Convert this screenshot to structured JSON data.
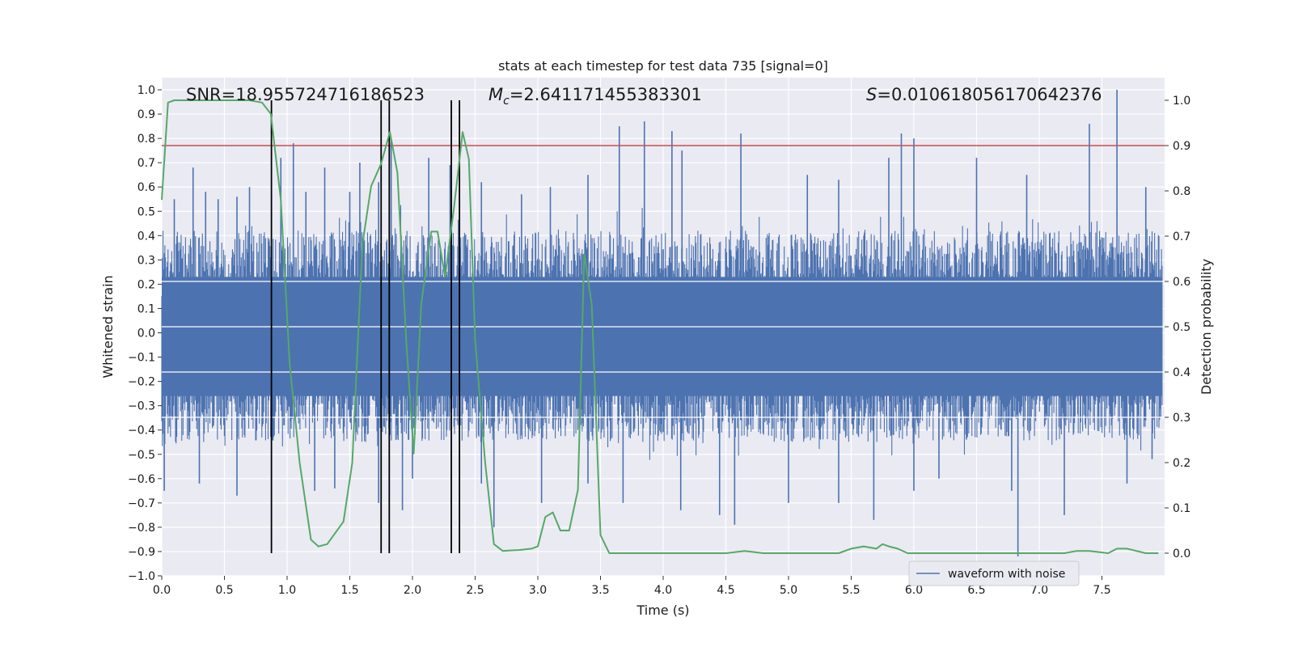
{
  "chart_data": {
    "type": "line",
    "title": "stats at each timestep for test data 735 [signal=0]",
    "xlabel": "Time (s)",
    "ylabel": "Whitened strain",
    "ylabel_right": "Detection probability",
    "xlim": [
      0.0,
      8.0
    ],
    "ylim": [
      -1.0,
      1.05
    ],
    "ylim_right": [
      -0.05,
      1.05
    ],
    "x_ticks": [
      0.0,
      0.5,
      1.0,
      1.5,
      2.0,
      2.5,
      3.0,
      3.5,
      4.0,
      4.5,
      5.0,
      5.5,
      6.0,
      6.5,
      7.0,
      7.5
    ],
    "x_tick_labels": [
      "0.0",
      "0.5",
      "1.0",
      "1.5",
      "2.0",
      "2.5",
      "3.0",
      "3.5",
      "4.0",
      "4.5",
      "5.0",
      "5.5",
      "6.0",
      "6.5",
      "7.0",
      "7.5"
    ],
    "y_ticks": [
      -1.0,
      -0.9,
      -0.8,
      -0.7,
      -0.6,
      -0.5,
      -0.4,
      -0.3,
      -0.2,
      -0.1,
      0.0,
      0.1,
      0.2,
      0.3,
      0.4,
      0.5,
      0.6,
      0.7,
      0.8,
      0.9,
      1.0
    ],
    "y_tick_labels": [
      "−1.0",
      "−0.9",
      "−0.8",
      "−0.7",
      "−0.6",
      "−0.5",
      "−0.4",
      "−0.3",
      "−0.2",
      "−0.1",
      "0.0",
      "0.1",
      "0.2",
      "0.3",
      "0.4",
      "0.5",
      "0.6",
      "0.7",
      "0.8",
      "0.9",
      "1.0"
    ],
    "y_right_ticks": [
      0.0,
      0.1,
      0.2,
      0.3,
      0.4,
      0.5,
      0.6,
      0.7,
      0.8,
      0.9,
      1.0
    ],
    "y_right_tick_labels": [
      "0.0",
      "0.1",
      "0.2",
      "0.3",
      "0.4",
      "0.5",
      "0.6",
      "0.7",
      "0.8",
      "0.9",
      "1.0"
    ],
    "grid": true,
    "legend": {
      "position": "lower-right",
      "entries": [
        {
          "label": "waveform with noise",
          "color": "#4c72b0"
        }
      ]
    },
    "annotations": {
      "snr": "SNR=18.955724716186523",
      "mc_symbol": "M",
      "mc_sub": "c",
      "mc_value": "=2.641171455383301",
      "s_symbol": "S",
      "s_value": "=0.010618056170642376"
    },
    "threshold_right": 0.9,
    "threshold_color": "#c44e52",
    "vertical_lines_x": [
      0.875,
      1.75,
      1.815,
      2.31,
      2.375
    ],
    "waveform": {
      "name": "waveform with noise",
      "color": "#4c72b0",
      "dense_band": [
        -0.45,
        0.42
      ],
      "peaks_positive": [
        [
          0.1,
          0.55
        ],
        [
          0.25,
          0.68
        ],
        [
          0.35,
          0.58
        ],
        [
          0.45,
          0.55
        ],
        [
          0.6,
          0.56
        ],
        [
          0.7,
          0.6
        ],
        [
          0.95,
          0.72
        ],
        [
          1.05,
          0.78
        ],
        [
          1.15,
          0.58
        ],
        [
          1.3,
          0.68
        ],
        [
          1.5,
          0.58
        ],
        [
          1.58,
          0.7
        ],
        [
          1.73,
          0.62
        ],
        [
          1.83,
          0.8
        ],
        [
          2.13,
          0.72
        ],
        [
          2.3,
          0.69
        ],
        [
          2.55,
          0.62
        ],
        [
          2.87,
          0.57
        ],
        [
          3.1,
          0.6
        ],
        [
          3.4,
          0.65
        ],
        [
          3.65,
          0.85
        ],
        [
          3.85,
          0.87
        ],
        [
          4.07,
          0.83
        ],
        [
          4.15,
          0.75
        ],
        [
          4.62,
          0.82
        ],
        [
          5.15,
          0.65
        ],
        [
          5.4,
          0.63
        ],
        [
          5.8,
          0.72
        ],
        [
          5.9,
          0.82
        ],
        [
          6.0,
          0.8
        ],
        [
          6.5,
          0.72
        ],
        [
          6.9,
          0.65
        ],
        [
          7.4,
          0.86
        ],
        [
          7.62,
          1.0
        ],
        [
          7.85,
          0.6
        ]
      ],
      "peaks_negative": [
        [
          0.02,
          -0.65
        ],
        [
          0.3,
          -0.62
        ],
        [
          0.6,
          -0.67
        ],
        [
          0.88,
          -0.44
        ],
        [
          1.22,
          -0.65
        ],
        [
          1.38,
          -0.64
        ],
        [
          1.73,
          -0.7
        ],
        [
          1.92,
          -0.73
        ],
        [
          2.0,
          -0.6
        ],
        [
          2.55,
          -0.62
        ],
        [
          2.65,
          -0.8
        ],
        [
          3.03,
          -0.7
        ],
        [
          3.4,
          -0.62
        ],
        [
          3.68,
          -0.7
        ],
        [
          4.14,
          -0.73
        ],
        [
          4.45,
          -0.75
        ],
        [
          4.57,
          -0.79
        ],
        [
          5.0,
          -0.7
        ],
        [
          5.4,
          -0.7
        ],
        [
          5.68,
          -0.77
        ],
        [
          6.0,
          -0.65
        ],
        [
          6.2,
          -0.6
        ],
        [
          6.78,
          -0.65
        ],
        [
          6.83,
          -0.92
        ],
        [
          7.2,
          -0.75
        ],
        [
          7.7,
          -0.62
        ],
        [
          7.9,
          -0.52
        ]
      ]
    },
    "series": [
      {
        "name": "detection probability",
        "color": "#55a868",
        "axis": "right",
        "x": [
          0.0,
          0.05,
          0.1,
          0.2,
          0.3,
          0.5,
          0.7,
          0.8,
          0.87,
          0.95,
          1.02,
          1.1,
          1.19,
          1.25,
          1.32,
          1.45,
          1.52,
          1.6,
          1.67,
          1.75,
          1.82,
          1.88,
          1.95,
          2.01,
          2.07,
          2.15,
          2.2,
          2.26,
          2.33,
          2.4,
          2.45,
          2.5,
          2.58,
          2.65,
          2.72,
          2.78,
          2.85,
          2.95,
          3.0,
          3.06,
          3.12,
          3.18,
          3.25,
          3.32,
          3.37,
          3.43,
          3.5,
          3.57,
          3.7,
          3.9,
          4.2,
          4.5,
          4.65,
          4.8,
          5.0,
          5.4,
          5.5,
          5.6,
          5.7,
          5.75,
          5.8,
          5.87,
          5.95,
          6.2,
          6.5,
          7.0,
          7.2,
          7.3,
          7.4,
          7.55,
          7.62,
          7.7,
          7.85,
          7.95
        ],
        "y": [
          0.78,
          0.995,
          1.0,
          1.0,
          1.0,
          1.0,
          1.0,
          0.995,
          0.97,
          0.78,
          0.42,
          0.2,
          0.03,
          0.015,
          0.02,
          0.07,
          0.2,
          0.68,
          0.81,
          0.86,
          0.93,
          0.84,
          0.47,
          0.22,
          0.55,
          0.71,
          0.71,
          0.61,
          0.76,
          0.93,
          0.87,
          0.47,
          0.2,
          0.02,
          0.005,
          0.006,
          0.007,
          0.01,
          0.015,
          0.08,
          0.09,
          0.05,
          0.05,
          0.14,
          0.66,
          0.55,
          0.04,
          0.0,
          0.0,
          0.0,
          0.0,
          0.0,
          0.005,
          0.0,
          0.0,
          0.0,
          0.01,
          0.015,
          0.01,
          0.02,
          0.015,
          0.01,
          0.0,
          0.0,
          0.0,
          0.0,
          0.0,
          0.005,
          0.005,
          0.0,
          0.01,
          0.01,
          0.0,
          0.0
        ]
      }
    ]
  }
}
